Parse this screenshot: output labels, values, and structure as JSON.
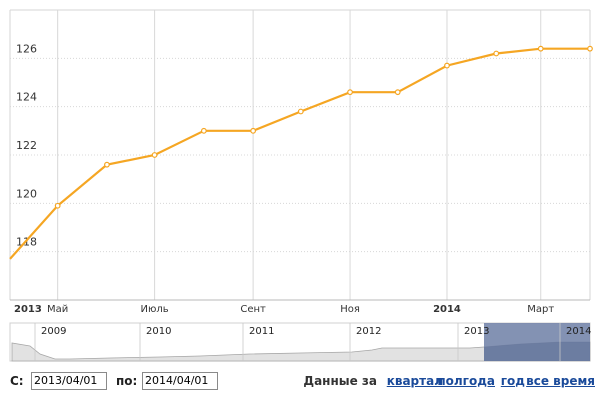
{
  "chart_data": {
    "type": "line",
    "x": [
      "2013-04-01",
      "2013-05-01",
      "2013-06-01",
      "2013-07-01",
      "2013-08-01",
      "2013-09-01",
      "2013-10-01",
      "2013-11-01",
      "2013-12-01",
      "2014-01-01",
      "2014-02-01",
      "2014-03-01",
      "2014-04-01"
    ],
    "values": [
      117.7,
      119.9,
      121.6,
      122.0,
      123.0,
      123.0,
      123.8,
      124.6,
      124.6,
      125.7,
      126.2,
      126.4,
      126.4
    ],
    "ylim": [
      116,
      128
    ],
    "yticks": [
      "118",
      "120",
      "122",
      "124",
      "126"
    ],
    "xticks": [
      {
        "label": "2013",
        "bold": true
      },
      {
        "label": "Май",
        "bold": false
      },
      {
        "label": "Июль",
        "bold": false
      },
      {
        "label": "Сент",
        "bold": false
      },
      {
        "label": "Ноя",
        "bold": false
      },
      {
        "label": "2014",
        "bold": true
      },
      {
        "label": "Март",
        "bold": false
      }
    ],
    "grid": true,
    "line_color": "#f5a623"
  },
  "navigator": {
    "year_labels": [
      "2009",
      "2010",
      "2011",
      "2012",
      "2013",
      "2014"
    ],
    "fill_color": "#e2e2e2",
    "selection_color": "#6d7fa6"
  },
  "controls": {
    "from_label": "С:",
    "from_value": "2013/04/01",
    "to_label": "по:",
    "to_value": "2014/04/01",
    "period_label": "Данные за",
    "links": {
      "quarter": "квартал",
      "half_year": "полгода",
      "year": "год",
      "all_time": "все время"
    }
  }
}
